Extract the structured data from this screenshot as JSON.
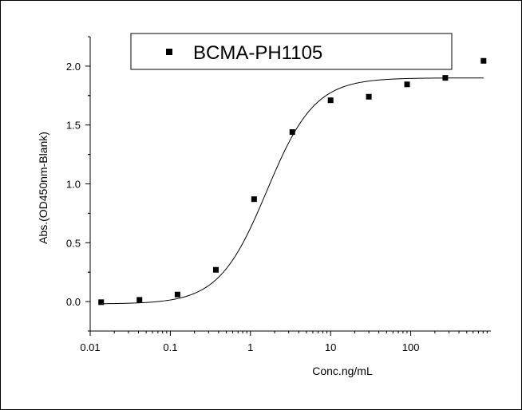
{
  "chart_data": {
    "type": "scatter",
    "x_scale": "log",
    "xlabel": "Conc.ng/mL",
    "ylabel": "Abs.(OD450nm-Blank)",
    "xlim": [
      0.01,
      1000
    ],
    "ylim": [
      -0.25,
      2.25
    ],
    "x_ticks": [
      0.01,
      0.1,
      1,
      10,
      100
    ],
    "x_tick_labels": [
      "0.01",
      "0.1",
      "1",
      "10",
      "100"
    ],
    "y_ticks": [
      0,
      0.5,
      1,
      1.5,
      2
    ],
    "y_tick_labels": [
      "0.0",
      "0.5",
      "1.0",
      "1.5",
      "2.0"
    ],
    "grid": false,
    "legend_position": "top",
    "series": [
      {
        "name": "BCMA-PH1105",
        "marker": "square",
        "color": "#000000",
        "x": [
          0.0137,
          0.0412,
          0.123,
          0.37,
          1.11,
          3.33,
          10,
          30,
          90,
          270,
          810
        ],
        "y": [
          -0.005,
          0.015,
          0.06,
          0.27,
          0.87,
          1.44,
          1.71,
          1.74,
          1.845,
          1.9,
          2.045
        ]
      }
    ],
    "fit_curve": {
      "model": "4PL",
      "bottom": -0.02,
      "top": 1.9,
      "ec50": 1.6,
      "hill": 1.45,
      "color": "#000000"
    }
  }
}
